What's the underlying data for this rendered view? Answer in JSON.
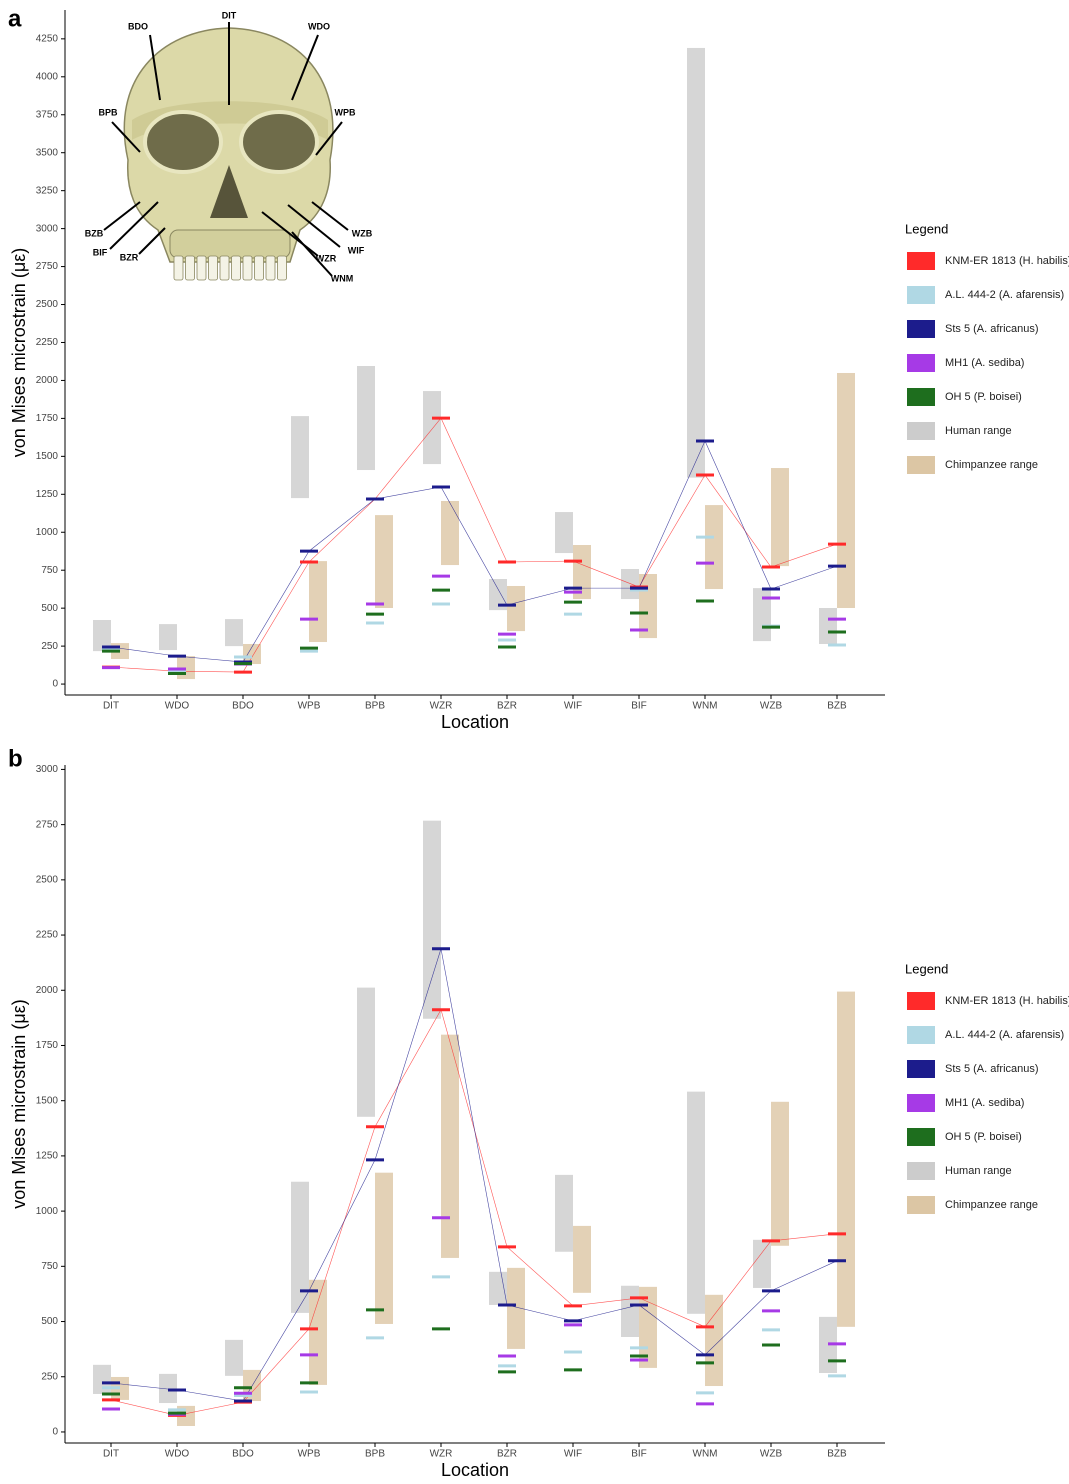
{
  "chart_data": [
    {
      "type": "marker",
      "panel_label": "a",
      "xlabel": "Location",
      "ylabel": "von Mises microstrain (με)",
      "legend_title": "Legend",
      "categories": [
        "DIT",
        "WDO",
        "BDO",
        "WPB",
        "BPB",
        "WZR",
        "BZR",
        "WIF",
        "BIF",
        "WNM",
        "WZB",
        "BZB"
      ],
      "ylim": [
        -72,
        4440
      ],
      "yticks": [
        0,
        250,
        500,
        750,
        1000,
        1250,
        1500,
        1750,
        2000,
        2250,
        2500,
        2750,
        3000,
        3250,
        3500,
        3750,
        4000,
        4250
      ],
      "annotations": [
        "BDO",
        "DIT",
        "WDO",
        "BPB",
        "WPB",
        "BZB",
        "BIF",
        "BZR",
        "WZB",
        "WIF",
        "WZR",
        "WNM"
      ],
      "ranges": [
        {
          "name": "Human range",
          "color": "#cccccc",
          "values": [
            [
              217,
              422
            ],
            [
              224,
              395
            ],
            [
              250,
              428
            ],
            [
              1225,
              1765
            ],
            [
              1410,
              2095
            ],
            [
              1449,
              1930
            ],
            [
              487,
              692
            ],
            [
              863,
              1133
            ],
            [
              560,
              758
            ],
            [
              1360,
              4190
            ],
            [
              283,
              632
            ],
            [
              264,
              501
            ]
          ]
        },
        {
          "name": "Chimpanzee  range",
          "color": "#dcc6a4",
          "values": [
            [
              165,
              270
            ],
            [
              33,
              184
            ],
            [
              132,
              264
            ],
            [
              277,
              810
            ],
            [
              501,
              1113
            ],
            [
              784,
              1206
            ],
            [
              349,
              646
            ],
            [
              560,
              916
            ],
            [
              303,
              725
            ],
            [
              626,
              1179
            ],
            [
              777,
              1423
            ],
            [
              501,
              2049
            ]
          ]
        }
      ],
      "series": [
        {
          "name": "KNM-ER 1813 (H. habilis)",
          "color": "#ff2a2a",
          "connect": true,
          "values": [
            112,
            85,
            79,
            804,
            1219,
            1752,
            804,
            810,
            639,
            1377,
            771,
            922
          ]
        },
        {
          "name": "A.L. 444-2 (A. afarensis)",
          "color": "#b0d8e4",
          "connect": false,
          "values": [
            225,
            86,
            178,
            217,
            402,
            527,
            290,
            461,
            620,
            968,
            382,
            257
          ]
        },
        {
          "name": "Sts 5 (A. africanus)",
          "color": "#1c1c8c",
          "connect": true,
          "values": [
            244,
            184,
            145,
            876,
            1219,
            1298,
            520,
            632,
            632,
            1601,
            626,
            777
          ]
        },
        {
          "name": "MH1 (A. sediba)",
          "color": "#a63ae6",
          "connect": false,
          "values": [
            108,
            99,
            132,
            428,
            527,
            711,
            329,
            606,
            356,
            797,
            567,
            428
          ]
        },
        {
          "name": "OH 5 (P. boisei)",
          "color": "#1e6e1e",
          "connect": false,
          "values": [
            217,
            70,
            135,
            237,
            461,
            619,
            244,
            540,
            468,
            547,
            375,
            343
          ]
        }
      ]
    },
    {
      "type": "marker",
      "panel_label": "b",
      "xlabel": "Location",
      "ylabel": "von Mises microstrain (με)",
      "legend_title": "Legend",
      "categories": [
        "DIT",
        "WDO",
        "BDO",
        "WPB",
        "BPB",
        "WZR",
        "BZR",
        "WIF",
        "BIF",
        "WNM",
        "WZB",
        "BZB"
      ],
      "ylim": [
        -50,
        3020
      ],
      "yticks": [
        0,
        250,
        500,
        750,
        1000,
        1250,
        1500,
        1750,
        2000,
        2250,
        2500,
        2750,
        3000
      ],
      "ranges": [
        {
          "name": "Human range",
          "color": "#cccccc",
          "values": [
            [
              172,
              304
            ],
            [
              131,
              263
            ],
            [
              254,
              417
            ],
            [
              539,
              1133
            ],
            [
              1427,
              2012
            ],
            [
              1871,
              2768
            ],
            [
              575,
              725
            ],
            [
              816,
              1164
            ],
            [
              430,
              662
            ],
            [
              535,
              1541
            ],
            [
              652,
              870
            ],
            [
              267,
              521
            ]
          ]
        },
        {
          "name": "Chimpanzee  range",
          "color": "#dcc6a4",
          "values": [
            [
              145,
              249
            ],
            [
              27,
              118
            ],
            [
              140,
              281
            ],
            [
              213,
              689
            ],
            [
              489,
              1174
            ],
            [
              788,
              1799
            ],
            [
              376,
              743
            ],
            [
              630,
              933
            ],
            [
              290,
              657
            ],
            [
              208,
              621
            ],
            [
              843,
              1495
            ],
            [
              476,
              1994
            ]
          ]
        }
      ],
      "series": [
        {
          "name": "KNM-ER 1813 (H. habilis)",
          "color": "#ff2a2a",
          "connect": true,
          "values": [
            145,
            75,
            135,
            467,
            1382,
            1912,
            838,
            571,
            607,
            476,
            865,
            897
          ]
        },
        {
          "name": "A.L. 444-2 (A. afarensis)",
          "color": "#b0d8e4",
          "connect": false,
          "values": [
            200,
            100,
            165,
            181,
            426,
            702,
            299,
            362,
            381,
            177,
            462,
            254
          ]
        },
        {
          "name": "Sts 5 (A. africanus)",
          "color": "#1c1c8c",
          "connect": true,
          "values": [
            222,
            190,
            140,
            639,
            1232,
            2188,
            575,
            503,
            575,
            349,
            639,
            775
          ]
        },
        {
          "name": "MH1 (A. sediba)",
          "color": "#a63ae6",
          "connect": false,
          "values": [
            104,
            80,
            175,
            349,
            null,
            970,
            344,
            485,
            326,
            127,
            548,
            399
          ]
        },
        {
          "name": "OH 5 (P. boisei)",
          "color": "#1e6e1e",
          "connect": false,
          "values": [
            172,
            85,
            200,
            222,
            553,
            467,
            272,
            281,
            344,
            313,
            394,
            322
          ]
        }
      ]
    }
  ]
}
